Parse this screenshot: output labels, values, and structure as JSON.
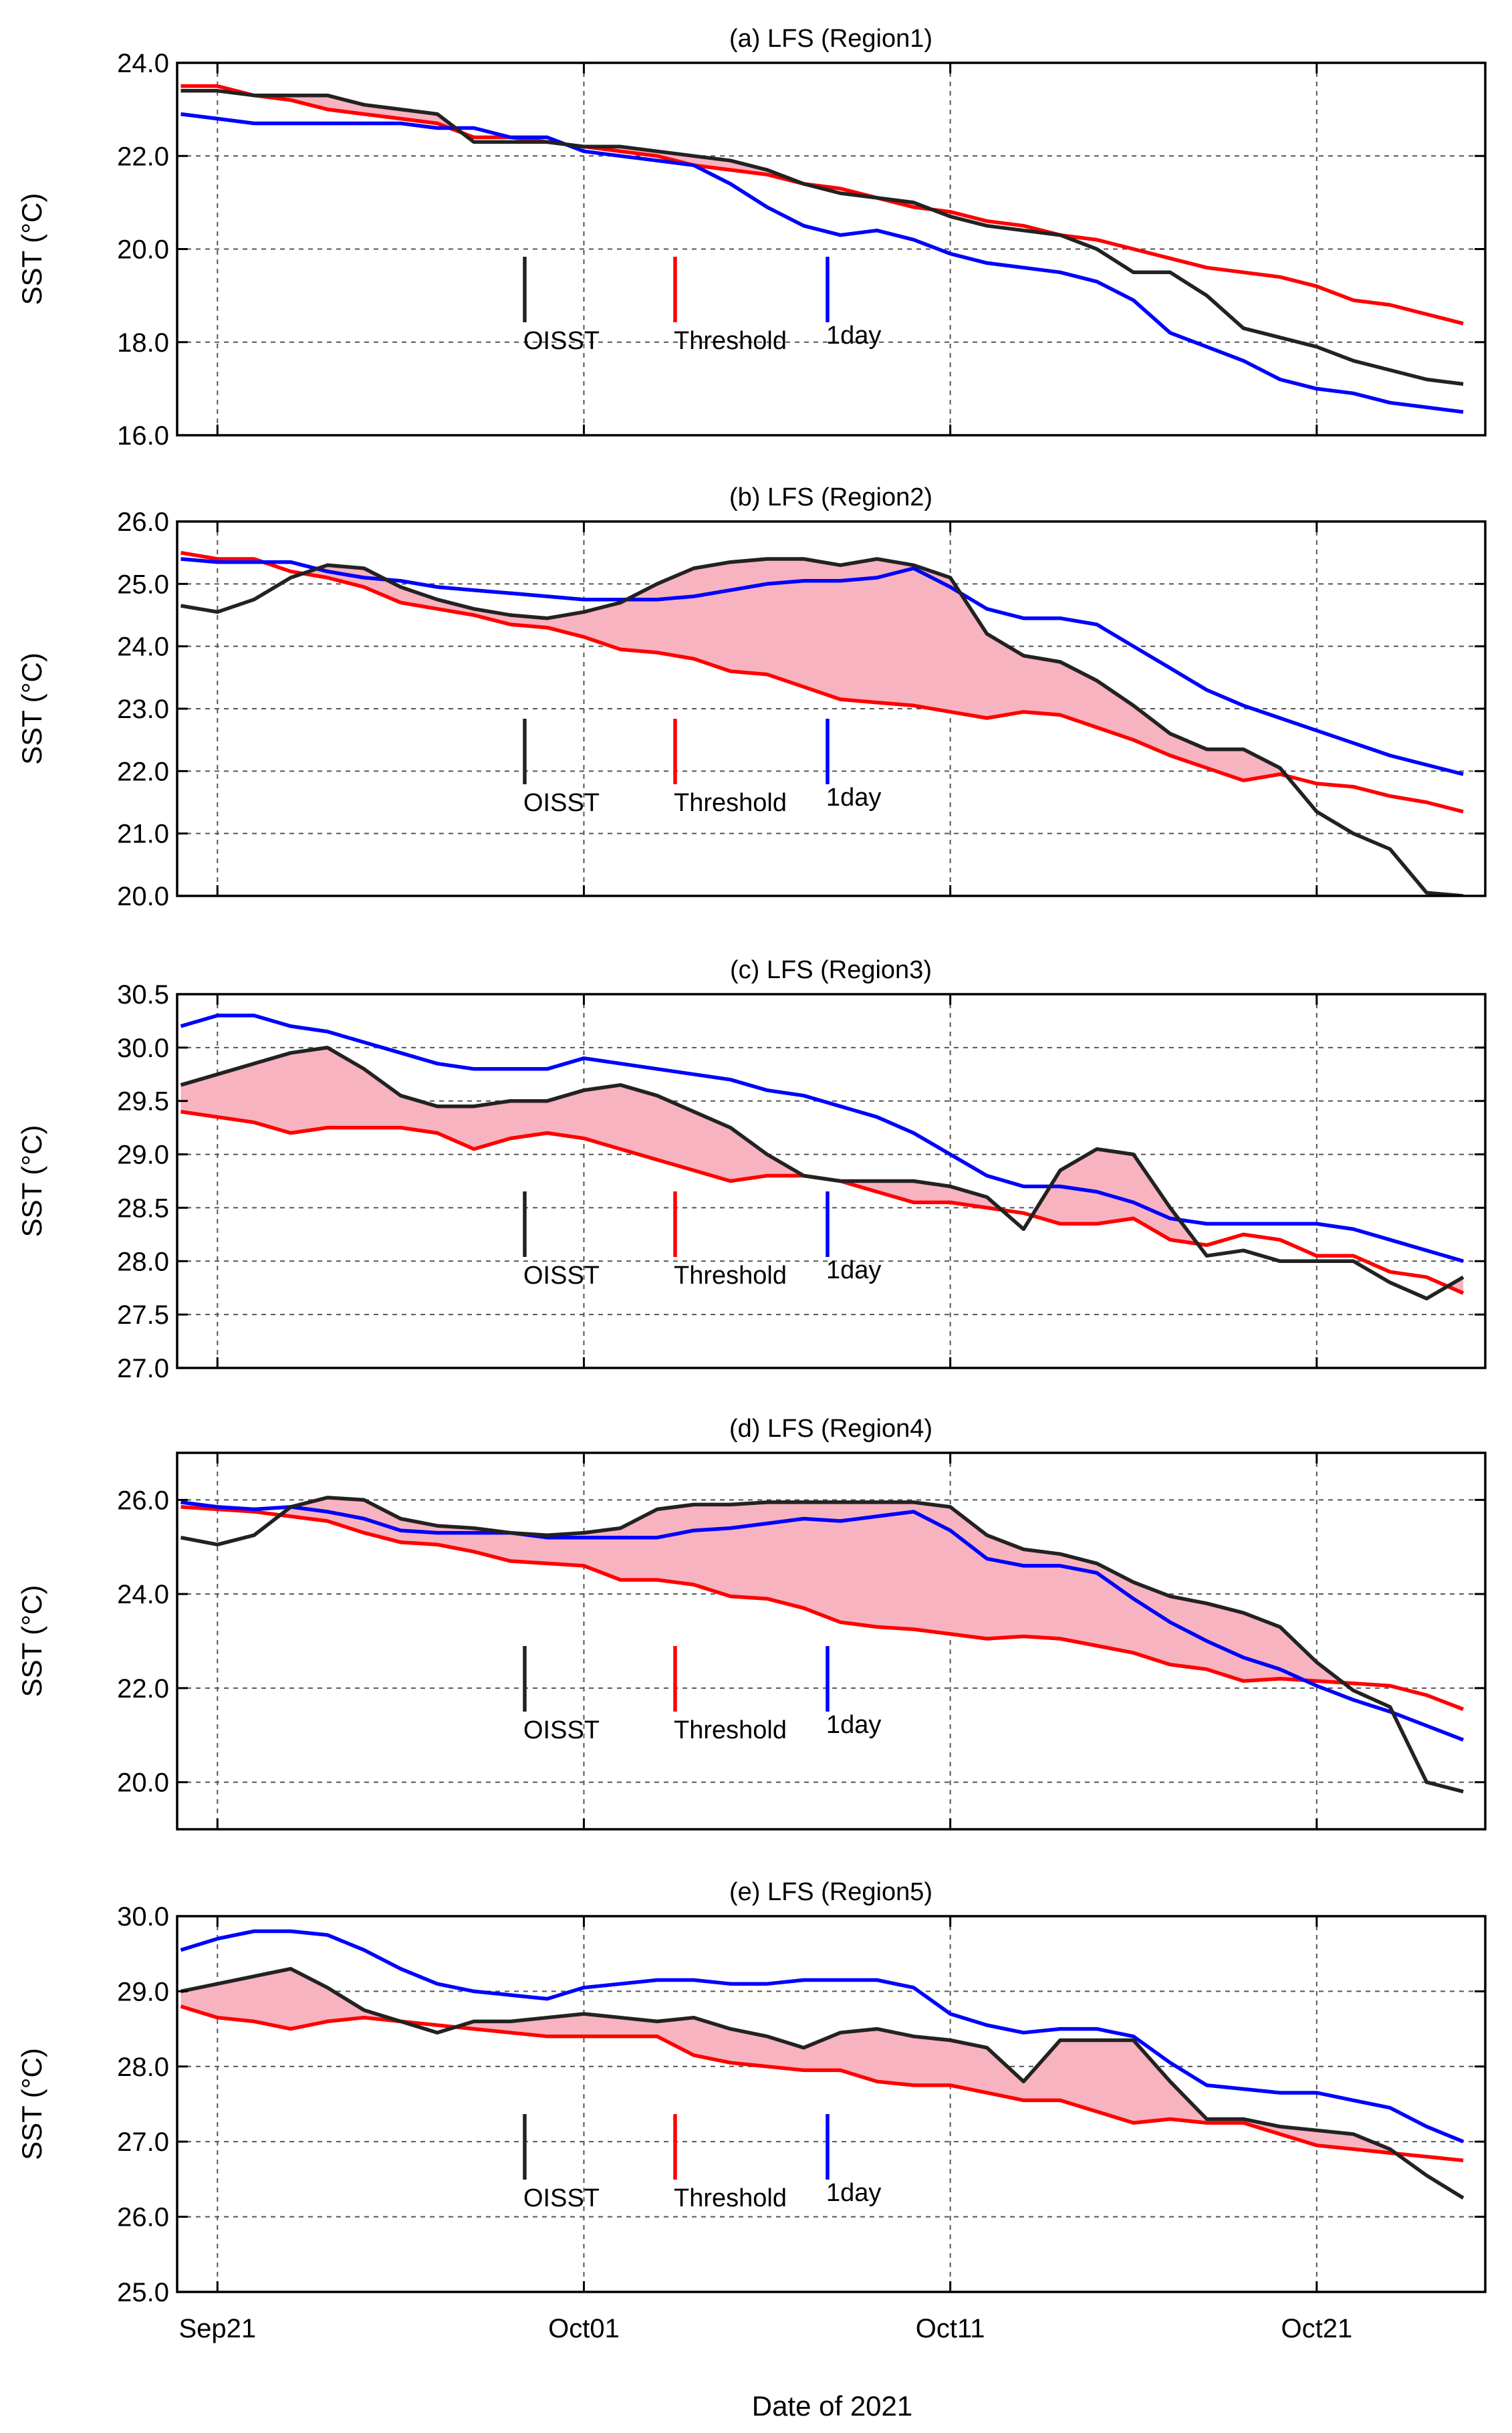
{
  "figure": {
    "xlabel": "Date of 2021",
    "xticks": [
      {
        "day": 0,
        "label": "Sep21"
      },
      {
        "day": 10,
        "label": "Oct01"
      },
      {
        "day": 20,
        "label": "Oct11"
      },
      {
        "day": 30,
        "label": "Oct21"
      }
    ],
    "legend": [
      {
        "label": "OISST",
        "color": "#222222"
      },
      {
        "label": "Threshold",
        "color": "#ff0000"
      },
      {
        "label": "1day",
        "color": "#0000ff"
      }
    ],
    "colors": {
      "oisst": "#222222",
      "threshold": "#ff0000",
      "oneday": "#0000ff",
      "fill": "#f7b3bf"
    }
  },
  "chart_data": [
    {
      "type": "line",
      "title": "(a) LFS (Region1)",
      "ylabel": "SST (°C)",
      "ylim": [
        16.0,
        24.0
      ],
      "yticks": [
        "16.0",
        "18.0",
        "20.0",
        "22.0",
        "24.0"
      ],
      "x_start": "2021-09-20",
      "x_step_days": 1,
      "series": [
        {
          "name": "OISST",
          "values": [
            23.4,
            23.4,
            23.3,
            23.3,
            23.3,
            23.1,
            23.0,
            22.9,
            22.3,
            22.3,
            22.3,
            22.2,
            22.2,
            22.1,
            22.0,
            21.9,
            21.7,
            21.4,
            21.2,
            21.1,
            21.0,
            20.7,
            20.5,
            20.4,
            20.3,
            20.0,
            19.5,
            19.5,
            19.0,
            18.3,
            18.1,
            17.9,
            17.6,
            17.4,
            17.2,
            17.1
          ]
        },
        {
          "name": "Threshold",
          "values": [
            23.5,
            23.5,
            23.3,
            23.2,
            23.0,
            22.9,
            22.8,
            22.7,
            22.4,
            22.4,
            22.3,
            22.2,
            22.1,
            22.0,
            21.8,
            21.7,
            21.6,
            21.4,
            21.3,
            21.1,
            20.9,
            20.8,
            20.6,
            20.5,
            20.3,
            20.2,
            20.0,
            19.8,
            19.6,
            19.5,
            19.4,
            19.2,
            18.9,
            18.8,
            18.6,
            18.4
          ]
        },
        {
          "name": "1day",
          "values": [
            22.9,
            22.8,
            22.7,
            22.7,
            22.7,
            22.7,
            22.7,
            22.6,
            22.6,
            22.4,
            22.4,
            22.1,
            22.0,
            21.9,
            21.8,
            21.4,
            20.9,
            20.5,
            20.3,
            20.4,
            20.2,
            19.9,
            19.7,
            19.6,
            19.5,
            19.3,
            18.9,
            18.2,
            17.9,
            17.6,
            17.2,
            17.0,
            16.9,
            16.7,
            16.6,
            16.5
          ]
        }
      ]
    },
    {
      "type": "line",
      "title": "(b) LFS (Region2)",
      "ylabel": "SST (°C)",
      "ylim": [
        20.0,
        26.0
      ],
      "yticks": [
        "20.0",
        "21.0",
        "22.0",
        "23.0",
        "24.0",
        "25.0",
        "26.0"
      ],
      "x_start": "2021-09-20",
      "x_step_days": 1,
      "series": [
        {
          "name": "OISST",
          "values": [
            24.65,
            24.55,
            24.75,
            25.1,
            25.3,
            25.25,
            24.95,
            24.75,
            24.6,
            24.5,
            24.45,
            24.55,
            24.7,
            25.0,
            25.25,
            25.35,
            25.4,
            25.4,
            25.3,
            25.4,
            25.3,
            25.1,
            24.2,
            23.85,
            23.75,
            23.45,
            23.05,
            22.6,
            22.35,
            22.35,
            22.05,
            21.35,
            21.0,
            20.75,
            20.05,
            20.0
          ]
        },
        {
          "name": "Threshold",
          "values": [
            25.5,
            25.4,
            25.4,
            25.2,
            25.1,
            24.95,
            24.7,
            24.6,
            24.5,
            24.35,
            24.3,
            24.15,
            23.95,
            23.9,
            23.8,
            23.6,
            23.55,
            23.35,
            23.15,
            23.1,
            23.05,
            22.95,
            22.85,
            22.95,
            22.9,
            22.7,
            22.5,
            22.25,
            22.05,
            21.85,
            21.95,
            21.8,
            21.75,
            21.6,
            21.5,
            21.35
          ]
        },
        {
          "name": "1day",
          "values": [
            25.4,
            25.35,
            25.35,
            25.35,
            25.2,
            25.1,
            25.05,
            24.95,
            24.9,
            24.85,
            24.8,
            24.75,
            24.75,
            24.75,
            24.8,
            24.9,
            25.0,
            25.05,
            25.05,
            25.1,
            25.25,
            24.95,
            24.6,
            24.45,
            24.45,
            24.35,
            24.0,
            23.65,
            23.3,
            23.05,
            22.85,
            22.65,
            22.45,
            22.25,
            22.1,
            21.95
          ]
        }
      ]
    },
    {
      "type": "line",
      "title": "(c) LFS (Region3)",
      "ylabel": "SST (°C)",
      "ylim": [
        27.0,
        30.5
      ],
      "yticks": [
        "27.0",
        "27.5",
        "28.0",
        "28.5",
        "29.0",
        "29.5",
        "30.0",
        "30.5"
      ],
      "x_start": "2021-09-20",
      "x_step_days": 1,
      "series": [
        {
          "name": "OISST",
          "values": [
            29.65,
            29.75,
            29.85,
            29.95,
            30.0,
            29.8,
            29.55,
            29.45,
            29.45,
            29.5,
            29.5,
            29.6,
            29.65,
            29.55,
            29.4,
            29.25,
            29.0,
            28.8,
            28.75,
            28.75,
            28.75,
            28.7,
            28.6,
            28.3,
            28.85,
            29.05,
            29.0,
            28.5,
            28.05,
            28.1,
            28.0,
            28.0,
            28.0,
            27.8,
            27.65,
            27.85
          ]
        },
        {
          "name": "Threshold",
          "values": [
            29.4,
            29.35,
            29.3,
            29.2,
            29.25,
            29.25,
            29.25,
            29.2,
            29.05,
            29.15,
            29.2,
            29.15,
            29.05,
            28.95,
            28.85,
            28.75,
            28.8,
            28.8,
            28.75,
            28.65,
            28.55,
            28.55,
            28.5,
            28.45,
            28.35,
            28.35,
            28.4,
            28.2,
            28.15,
            28.25,
            28.2,
            28.05,
            28.05,
            27.9,
            27.85,
            27.7
          ]
        },
        {
          "name": "1day",
          "values": [
            30.2,
            30.3,
            30.3,
            30.2,
            30.15,
            30.05,
            29.95,
            29.85,
            29.8,
            29.8,
            29.8,
            29.9,
            29.85,
            29.8,
            29.75,
            29.7,
            29.6,
            29.55,
            29.45,
            29.35,
            29.2,
            29.0,
            28.8,
            28.7,
            28.7,
            28.65,
            28.55,
            28.4,
            28.35,
            28.35,
            28.35,
            28.35,
            28.3,
            28.2,
            28.1,
            28.0
          ]
        }
      ]
    },
    {
      "type": "line",
      "title": "(d) LFS (Region4)",
      "ylabel": "SST (°C)",
      "ylim": [
        19.0,
        27.0
      ],
      "yticks": [
        "20.0",
        "22.0",
        "24.0",
        "26.0"
      ],
      "x_start": "2021-09-20",
      "x_step_days": 1,
      "series": [
        {
          "name": "OISST",
          "values": [
            25.2,
            25.05,
            25.25,
            25.85,
            26.05,
            26.0,
            25.6,
            25.45,
            25.4,
            25.3,
            25.25,
            25.3,
            25.4,
            25.8,
            25.9,
            25.9,
            25.95,
            25.95,
            25.95,
            25.95,
            25.95,
            25.85,
            25.25,
            24.95,
            24.85,
            24.65,
            24.25,
            23.95,
            23.8,
            23.6,
            23.3,
            22.55,
            21.95,
            21.6,
            20.0,
            19.8
          ]
        },
        {
          "name": "Threshold",
          "values": [
            25.85,
            25.8,
            25.75,
            25.65,
            25.55,
            25.3,
            25.1,
            25.05,
            24.9,
            24.7,
            24.65,
            24.6,
            24.3,
            24.3,
            24.2,
            23.95,
            23.9,
            23.7,
            23.4,
            23.3,
            23.25,
            23.15,
            23.05,
            23.1,
            23.05,
            22.9,
            22.75,
            22.5,
            22.4,
            22.15,
            22.2,
            22.15,
            22.1,
            22.05,
            21.85,
            21.55
          ]
        },
        {
          "name": "1day",
          "values": [
            25.95,
            25.85,
            25.8,
            25.85,
            25.75,
            25.6,
            25.35,
            25.3,
            25.3,
            25.3,
            25.2,
            25.2,
            25.2,
            25.2,
            25.35,
            25.4,
            25.5,
            25.6,
            25.55,
            25.65,
            25.75,
            25.35,
            24.75,
            24.6,
            24.6,
            24.45,
            23.9,
            23.4,
            23.0,
            22.65,
            22.4,
            22.05,
            21.75,
            21.5,
            21.2,
            20.9
          ]
        }
      ]
    },
    {
      "type": "line",
      "title": "(e) LFS (Region5)",
      "ylabel": "SST (°C)",
      "ylim": [
        25.0,
        30.0
      ],
      "yticks": [
        "25.0",
        "26.0",
        "27.0",
        "28.0",
        "29.0",
        "30.0"
      ],
      "x_start": "2021-09-20",
      "x_step_days": 1,
      "series": [
        {
          "name": "OISST",
          "values": [
            29.0,
            29.1,
            29.2,
            29.3,
            29.05,
            28.75,
            28.6,
            28.45,
            28.6,
            28.6,
            28.65,
            28.7,
            28.65,
            28.6,
            28.65,
            28.5,
            28.4,
            28.25,
            28.45,
            28.5,
            28.4,
            28.35,
            28.25,
            27.8,
            28.35,
            28.35,
            28.35,
            27.8,
            27.3,
            27.3,
            27.2,
            27.15,
            27.1,
            26.9,
            26.55,
            26.25
          ]
        },
        {
          "name": "Threshold",
          "values": [
            28.8,
            28.65,
            28.6,
            28.5,
            28.6,
            28.65,
            28.6,
            28.55,
            28.5,
            28.45,
            28.4,
            28.4,
            28.4,
            28.4,
            28.15,
            28.05,
            28.0,
            27.95,
            27.95,
            27.8,
            27.75,
            27.75,
            27.65,
            27.55,
            27.55,
            27.4,
            27.25,
            27.3,
            27.25,
            27.25,
            27.1,
            26.95,
            26.9,
            26.85,
            26.8,
            26.75
          ]
        },
        {
          "name": "1day",
          "values": [
            29.55,
            29.7,
            29.8,
            29.8,
            29.75,
            29.55,
            29.3,
            29.1,
            29.0,
            28.95,
            28.9,
            29.05,
            29.1,
            29.15,
            29.15,
            29.1,
            29.1,
            29.15,
            29.15,
            29.15,
            29.05,
            28.7,
            28.55,
            28.45,
            28.5,
            28.5,
            28.4,
            28.05,
            27.75,
            27.7,
            27.65,
            27.65,
            27.55,
            27.45,
            27.2,
            27.0
          ]
        }
      ]
    }
  ]
}
